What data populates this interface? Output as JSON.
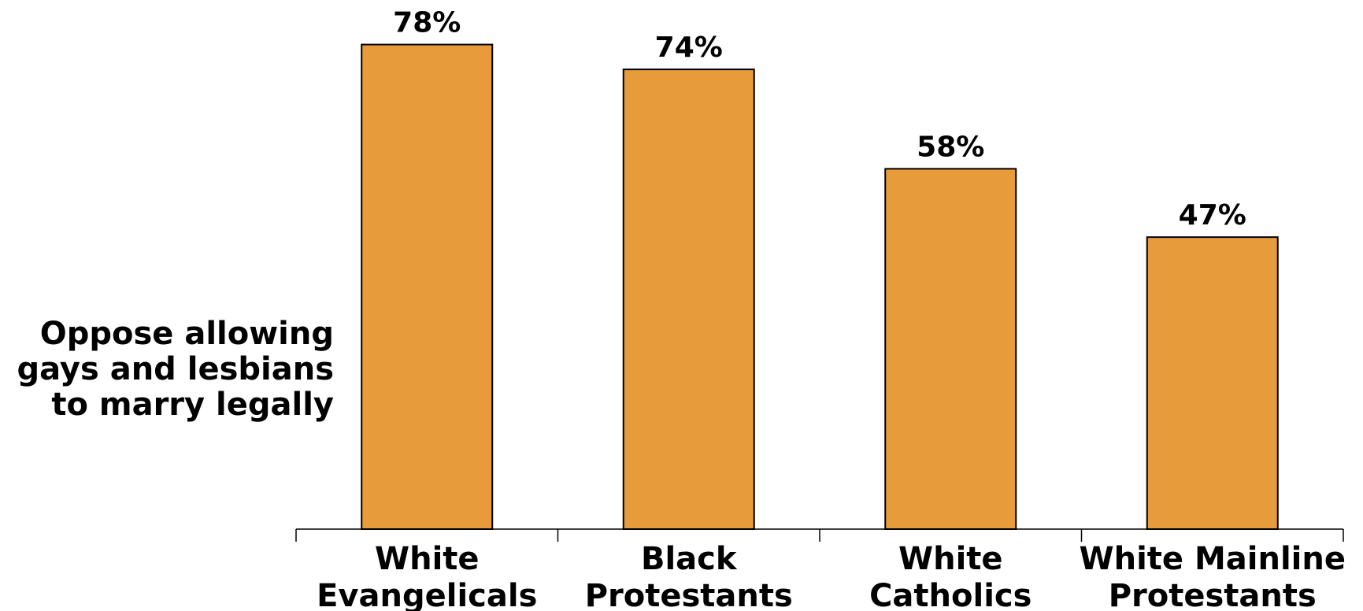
{
  "chart_data": {
    "type": "bar",
    "categories": [
      [
        "White",
        "Evangelicals"
      ],
      [
        "Black",
        "Protestants"
      ],
      [
        "White",
        "Catholics"
      ],
      [
        "White Mainline",
        "Protestants"
      ]
    ],
    "values": [
      78,
      74,
      58,
      47
    ],
    "data_labels": [
      "78%",
      "74%",
      "58%",
      "47%"
    ],
    "ylabel_lines": [
      "Oppose allowing",
      "gays and lesbians",
      "to marry legally"
    ],
    "ylim": [
      0,
      100
    ],
    "grid": false,
    "legend": "none",
    "bar_color": "#E89B3B",
    "bar_edge_color": "#000000"
  }
}
